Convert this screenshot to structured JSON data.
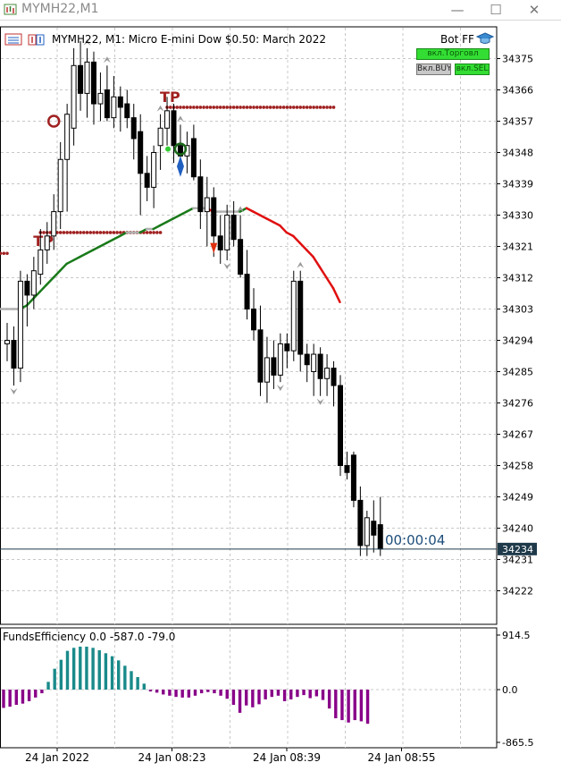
{
  "window": {
    "title": "MYMH22,M1",
    "minimize_icon": "minimize-icon",
    "maximize_icon": "maximize-icon",
    "close_icon": "close-icon"
  },
  "chart_header": {
    "description": "MYMH22, M1:  Micro E-mini Dow $0.50: March 2022",
    "bot_label": "Bot FF",
    "buttons": {
      "trade_on": "вкл.Торговл",
      "buy_on": "Вкл.BUY",
      "sell_on": "вкл.SEL"
    }
  },
  "timer": "00:00:04",
  "colors": {
    "bull_candle": "#ffffff",
    "bear_candle": "#000000",
    "ma_up": "#1a7a1a",
    "ma_flat": "#b0b0b0",
    "ma_down": "#e01010",
    "tp_marker": "#a02020",
    "histogram_pos": "#1a8a8a",
    "histogram_neg": "#880088",
    "price_tag": "#1e3a4a"
  },
  "chart_data": [
    {
      "type": "candlestick",
      "symbol": "MYMH22",
      "timeframe": "M1",
      "y_ticks": [
        34375,
        34366,
        34357,
        34348,
        34339,
        34330,
        34321,
        34312,
        34303,
        34294,
        34285,
        34276,
        34267,
        34258,
        34249,
        34240,
        34231,
        34222
      ],
      "ylim": [
        34215,
        34380
      ],
      "current_price": "34234",
      "current_price_value": 34234,
      "x_tick_labels": [
        "24 Jan 2022",
        "24 Jan 08:23",
        "24 Jan 08:39",
        "24 Jan 08:55"
      ],
      "x_tick_index": [
        8,
        24,
        40,
        56
      ],
      "candles": [
        {
          "o": 34293,
          "h": 34299,
          "l": 34288,
          "c": 34294
        },
        {
          "o": 34294,
          "h": 34298,
          "l": 34281,
          "c": 34286
        },
        {
          "o": 34286,
          "h": 34314,
          "l": 34282,
          "c": 34311
        },
        {
          "o": 34311,
          "h": 34313,
          "l": 34298,
          "c": 34307
        },
        {
          "o": 34307,
          "h": 34318,
          "l": 34303,
          "c": 34314
        },
        {
          "o": 34313,
          "h": 34326,
          "l": 34310,
          "c": 34320
        },
        {
          "o": 34320,
          "h": 34328,
          "l": 34316,
          "c": 34324
        },
        {
          "o": 34324,
          "h": 34336,
          "l": 34320,
          "c": 34331
        },
        {
          "o": 34331,
          "h": 34351,
          "l": 34326,
          "c": 34346
        },
        {
          "o": 34346,
          "h": 34362,
          "l": 34331,
          "c": 34359
        },
        {
          "o": 34355,
          "h": 34378,
          "l": 34350,
          "c": 34373
        },
        {
          "o": 34373,
          "h": 34380,
          "l": 34360,
          "c": 34365
        },
        {
          "o": 34365,
          "h": 34378,
          "l": 34358,
          "c": 34374
        },
        {
          "o": 34374,
          "h": 34377,
          "l": 34356,
          "c": 34362
        },
        {
          "o": 34362,
          "h": 34371,
          "l": 34357,
          "c": 34365
        },
        {
          "o": 34366,
          "h": 34373,
          "l": 34357,
          "c": 34358
        },
        {
          "o": 34358,
          "h": 34370,
          "l": 34355,
          "c": 34364
        },
        {
          "o": 34364,
          "h": 34367,
          "l": 34354,
          "c": 34361
        },
        {
          "o": 34362,
          "h": 34366,
          "l": 34355,
          "c": 34358
        },
        {
          "o": 34358,
          "h": 34362,
          "l": 34346,
          "c": 34352
        },
        {
          "o": 34354,
          "h": 34359,
          "l": 34330,
          "c": 34342
        },
        {
          "o": 34342,
          "h": 34347,
          "l": 34334,
          "c": 34338
        },
        {
          "o": 34338,
          "h": 34350,
          "l": 34332,
          "c": 34348
        },
        {
          "o": 34350,
          "h": 34359,
          "l": 34343,
          "c": 34355
        },
        {
          "o": 34355,
          "h": 34364,
          "l": 34350,
          "c": 34360
        },
        {
          "o": 34360,
          "h": 34362,
          "l": 34345,
          "c": 34350
        },
        {
          "o": 34350,
          "h": 34356,
          "l": 34344,
          "c": 34347
        },
        {
          "o": 34347,
          "h": 34354,
          "l": 34342,
          "c": 34350
        },
        {
          "o": 34352,
          "h": 34356,
          "l": 34340,
          "c": 34341
        },
        {
          "o": 34341,
          "h": 34346,
          "l": 34326,
          "c": 34331
        },
        {
          "o": 34331,
          "h": 34341,
          "l": 34321,
          "c": 34335
        },
        {
          "o": 34335,
          "h": 34338,
          "l": 34318,
          "c": 34324
        },
        {
          "o": 34324,
          "h": 34330,
          "l": 34316,
          "c": 34320
        },
        {
          "o": 34320,
          "h": 34333,
          "l": 34317,
          "c": 34330
        },
        {
          "o": 34330,
          "h": 34334,
          "l": 34321,
          "c": 34323
        },
        {
          "o": 34323,
          "h": 34330,
          "l": 34312,
          "c": 34313
        },
        {
          "o": 34313,
          "h": 34320,
          "l": 34300,
          "c": 34303
        },
        {
          "o": 34303,
          "h": 34309,
          "l": 34294,
          "c": 34297
        },
        {
          "o": 34297,
          "h": 34304,
          "l": 34278,
          "c": 34282
        },
        {
          "o": 34282,
          "h": 34295,
          "l": 34276,
          "c": 34289
        },
        {
          "o": 34289,
          "h": 34294,
          "l": 34280,
          "c": 34284
        },
        {
          "o": 34284,
          "h": 34296,
          "l": 34282,
          "c": 34293
        },
        {
          "o": 34293,
          "h": 34296,
          "l": 34286,
          "c": 34291
        },
        {
          "o": 34291,
          "h": 34314,
          "l": 34288,
          "c": 34311
        },
        {
          "o": 34311,
          "h": 34314,
          "l": 34285,
          "c": 34290
        },
        {
          "o": 34290,
          "h": 34293,
          "l": 34282,
          "c": 34287
        },
        {
          "o": 34285,
          "h": 34293,
          "l": 34278,
          "c": 34290
        },
        {
          "o": 34290,
          "h": 34292,
          "l": 34278,
          "c": 34283
        },
        {
          "o": 34283,
          "h": 34290,
          "l": 34278,
          "c": 34286
        },
        {
          "o": 34286,
          "h": 34288,
          "l": 34275,
          "c": 34281
        },
        {
          "o": 34281,
          "h": 34284,
          "l": 34255,
          "c": 34258
        },
        {
          "o": 34258,
          "h": 34262,
          "l": 34254,
          "c": 34256
        },
        {
          "o": 34261,
          "h": 34262,
          "l": 34246,
          "c": 34248
        },
        {
          "o": 34248,
          "h": 34252,
          "l": 34232,
          "c": 34235
        },
        {
          "o": 34235,
          "h": 34245,
          "l": 34232,
          "c": 34243
        },
        {
          "o": 34242,
          "h": 34248,
          "l": 34233,
          "c": 34238
        },
        {
          "o": 34241,
          "h": 34249,
          "l": 34232,
          "c": 34234
        }
      ],
      "moving_average": [
        34303,
        34303,
        34303,
        34303,
        34304,
        34306,
        34308,
        34310,
        34312,
        34314,
        34316,
        34317,
        34318,
        34319,
        34320,
        34321,
        34322,
        34323,
        34324,
        34325,
        34325,
        34325,
        34326,
        34326,
        34327,
        34328,
        34329,
        34330,
        34331,
        34332,
        34332,
        34332,
        34331,
        34331,
        34331,
        34331,
        34331,
        34332,
        34331,
        34330,
        34329,
        34328,
        34327,
        34325,
        34324,
        34322,
        34320,
        34318,
        34315,
        34312,
        34309,
        34305
      ],
      "tp_levels": [
        {
          "label": "TP",
          "price": 34361,
          "from_index": 24,
          "to_index": 49
        },
        {
          "label": "TP",
          "price": 34325,
          "from_index": 5,
          "to_index": 23
        },
        {
          "label": "",
          "price": 34319,
          "from_index": -2,
          "to_index": 0
        }
      ]
    },
    {
      "type": "bar",
      "indicator_label": "FundsEfficiency 0.0 -587.0 -79.0",
      "y_ticks": [
        "914.5",
        "0.0",
        "-865.5"
      ],
      "ylim": [
        -865.5,
        914.5
      ],
      "values": [
        -300,
        -280,
        -250,
        -230,
        -190,
        -130,
        -60,
        130,
        350,
        500,
        650,
        700,
        720,
        720,
        700,
        660,
        610,
        560,
        490,
        400,
        310,
        210,
        100,
        -30,
        -50,
        -80,
        -100,
        -120,
        -130,
        -130,
        -100,
        -60,
        -40,
        -60,
        -100,
        -150,
        -250,
        -380,
        -260,
        -290,
        -240,
        -160,
        -120,
        -100,
        -190,
        -160,
        -120,
        -90,
        -140,
        -110,
        -170,
        -310,
        -470,
        -500,
        -540,
        -500,
        -520,
        -560
      ]
    }
  ]
}
